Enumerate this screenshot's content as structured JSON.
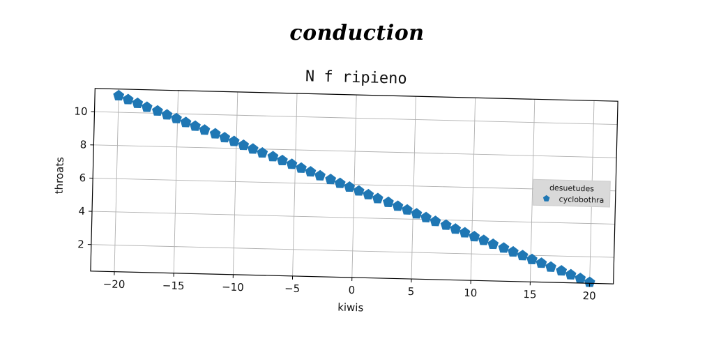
{
  "suptitle": "conduction",
  "chart_data": {
    "type": "scatter",
    "title": "N f ripieno",
    "xlabel": "kiwis",
    "ylabel": "throats",
    "xlim": [
      -22,
      22
    ],
    "ylim": [
      0.4,
      11.4
    ],
    "xticks": [
      -20,
      -15,
      -10,
      -5,
      0,
      5,
      10,
      15,
      20
    ],
    "xtick_labels": [
      "−20",
      "−15",
      "−10",
      "−5",
      "0",
      "5",
      "10",
      "15",
      "20"
    ],
    "yticks": [
      2,
      4,
      6,
      8,
      10
    ],
    "ytick_labels": [
      "2",
      "4",
      "6",
      "8",
      "10"
    ],
    "grid": true,
    "legend": {
      "title": "desuetudes",
      "placement": "center-right",
      "entries": [
        "cyclobothra"
      ]
    },
    "marker": "pentagon",
    "series": [
      {
        "name": "cyclobothra",
        "color": "#1f77b4",
        "x": [
          -20,
          -19.2,
          -18.4,
          -17.6,
          -16.7,
          -15.9,
          -15.1,
          -14.3,
          -13.5,
          -12.7,
          -11.8,
          -11,
          -10.2,
          -9.4,
          -8.6,
          -7.8,
          -6.9,
          -6.1,
          -5.3,
          -4.5,
          -3.7,
          -2.9,
          -2,
          -1.2,
          -0.4,
          0.4,
          1.2,
          2,
          2.9,
          3.7,
          4.5,
          5.3,
          6.1,
          6.9,
          7.8,
          8.6,
          9.4,
          10.2,
          11,
          11.8,
          12.7,
          13.5,
          14.3,
          15.1,
          15.9,
          16.7,
          17.6,
          18.4,
          19.2,
          20
        ],
        "y": [
          11,
          10.78,
          10.57,
          10.35,
          10.14,
          9.92,
          9.71,
          9.49,
          9.28,
          9.06,
          8.85,
          8.63,
          8.42,
          8.2,
          7.99,
          7.77,
          7.56,
          7.34,
          7.13,
          6.91,
          6.7,
          6.48,
          6.27,
          6.05,
          5.84,
          5.62,
          5.41,
          5.19,
          4.98,
          4.76,
          4.55,
          4.33,
          4.12,
          3.9,
          3.69,
          3.47,
          3.26,
          3.04,
          2.83,
          2.61,
          2.4,
          2.18,
          1.97,
          1.75,
          1.54,
          1.32,
          1.11,
          0.89,
          0.68,
          0.46
        ]
      }
    ]
  }
}
